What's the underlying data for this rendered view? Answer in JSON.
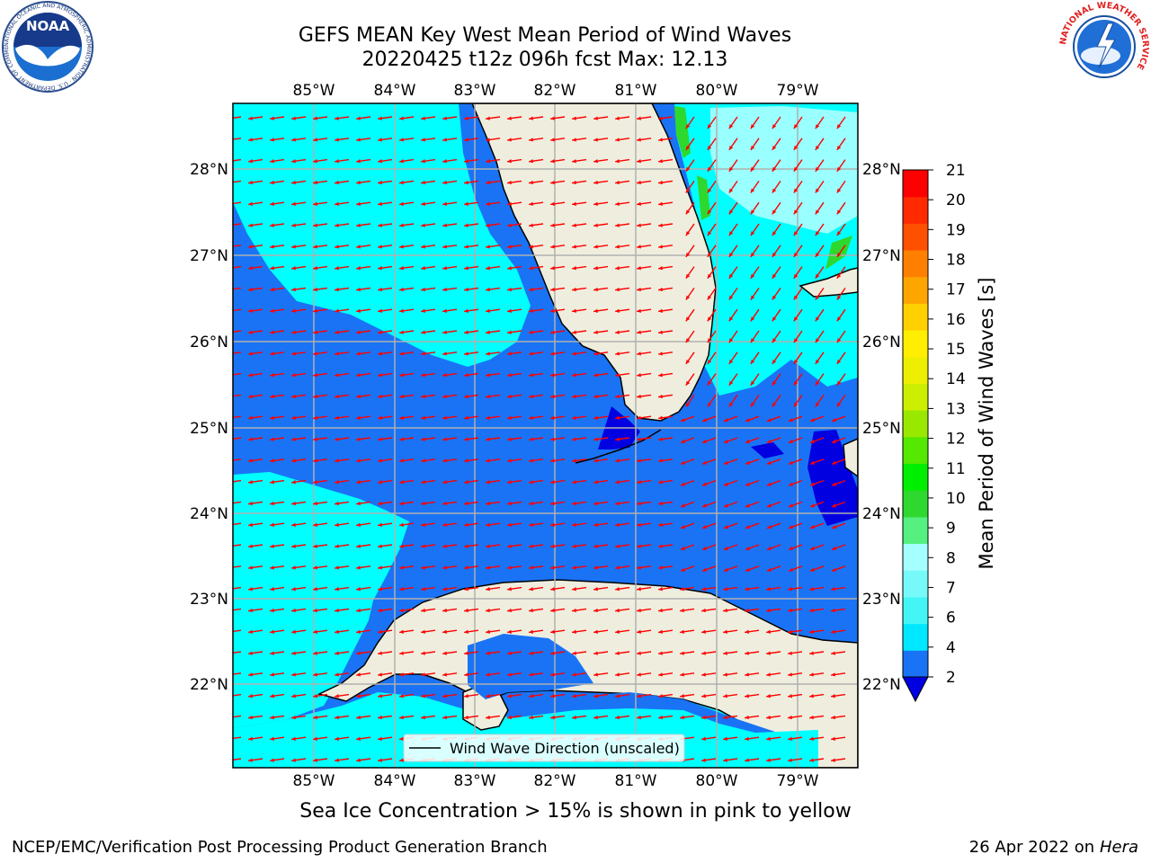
{
  "title": {
    "line1": "GEFS MEAN Key West Mean Period of Wind Waves",
    "line2": "20220425 t12z 096h fcst   Max: 12.13"
  },
  "map": {
    "lon_labels": [
      "85°W",
      "84°W",
      "83°W",
      "82°W",
      "81°W",
      "80°W",
      "79°W"
    ],
    "lat_labels": [
      "28°N",
      "27°N",
      "26°N",
      "25°N",
      "24°N",
      "23°N",
      "22°N"
    ],
    "legend_label": "Wind Wave Direction (unscaled)",
    "colors": {
      "ocean_dark": "#0000e0",
      "ocean_mid": "#1a73f5",
      "ocean_light": "#00ffff",
      "ocean_pale": "#99ffff",
      "land": "#efeede",
      "arrows": "#ff0000",
      "grid": "#b0b0b0"
    }
  },
  "colorbar": {
    "label": "Mean Period of Wind Waves [s]",
    "ticks": [
      "2",
      "4",
      "6",
      "7",
      "8",
      "9",
      "10",
      "11",
      "12",
      "13",
      "14",
      "15",
      "16",
      "17",
      "18",
      "19",
      "20",
      "21"
    ],
    "colors": [
      "#1a73f5",
      "#00e8ff",
      "#44f5f5",
      "#77f9f9",
      "#a6ffff",
      "#55f080",
      "#2ed82e",
      "#00ee00",
      "#55e800",
      "#99e800",
      "#ccee00",
      "#eeee00",
      "#ffee00",
      "#ffd000",
      "#ffa500",
      "#ff8000",
      "#ff5000",
      "#ff2a00",
      "#ff0000"
    ]
  },
  "footer": {
    "note": "Sea Ice Concentration > 15% is shown in pink to yellow",
    "left": "NCEP/EMC/Verification Post Processing Product Generation Branch",
    "right_prefix": "26 Apr 2022 on ",
    "right_host": "Hera"
  },
  "logos": {
    "noaa_text": "NOAA",
    "noaa_ring": "NATIONAL OCEANIC AND ATMOSPHERIC ADMINISTRATION · U.S. DEPARTMENT OF COMMERCE",
    "nws_ring": "NATIONAL WEATHER SERVICE"
  }
}
